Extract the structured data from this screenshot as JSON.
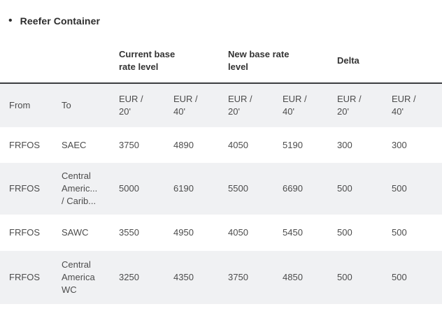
{
  "page": {
    "bullet": "•",
    "title": "Reefer Container"
  },
  "table": {
    "group_headers": [
      {
        "label": "Current base rate level"
      },
      {
        "label": "New base rate level"
      },
      {
        "label": "Delta"
      }
    ],
    "columns": [
      "From",
      "To",
      "EUR / 20'",
      "EUR / 40'",
      "EUR / 20'",
      "EUR / 40'",
      "EUR / 20'",
      "EUR / 40'"
    ],
    "rows": [
      {
        "from": "FRFOS",
        "to": "SAEC",
        "current_20": "3750",
        "current_40": "4890",
        "new_20": "4050",
        "new_40": "5190",
        "delta_20": "300",
        "delta_40": "300"
      },
      {
        "from": "FRFOS",
        "to": "Central Americ... / Carib...",
        "current_20": "5000",
        "current_40": "6190",
        "new_20": "5500",
        "new_40": "6690",
        "delta_20": "500",
        "delta_40": "500"
      },
      {
        "from": "FRFOS",
        "to": "SAWC",
        "current_20": "3550",
        "current_40": "4950",
        "new_20": "4050",
        "new_40": "5450",
        "delta_20": "500",
        "delta_40": "500"
      },
      {
        "from": "FRFOS",
        "to": "Central America WC",
        "current_20": "3250",
        "current_40": "4350",
        "new_20": "3750",
        "new_40": "4850",
        "delta_20": "500",
        "delta_40": "500"
      }
    ]
  },
  "colors": {
    "stripe_bg": "#f0f1f3",
    "header_rule": "#3c3d40",
    "title_text": "#2d2d2d",
    "body_text": "#4c4c4c"
  }
}
